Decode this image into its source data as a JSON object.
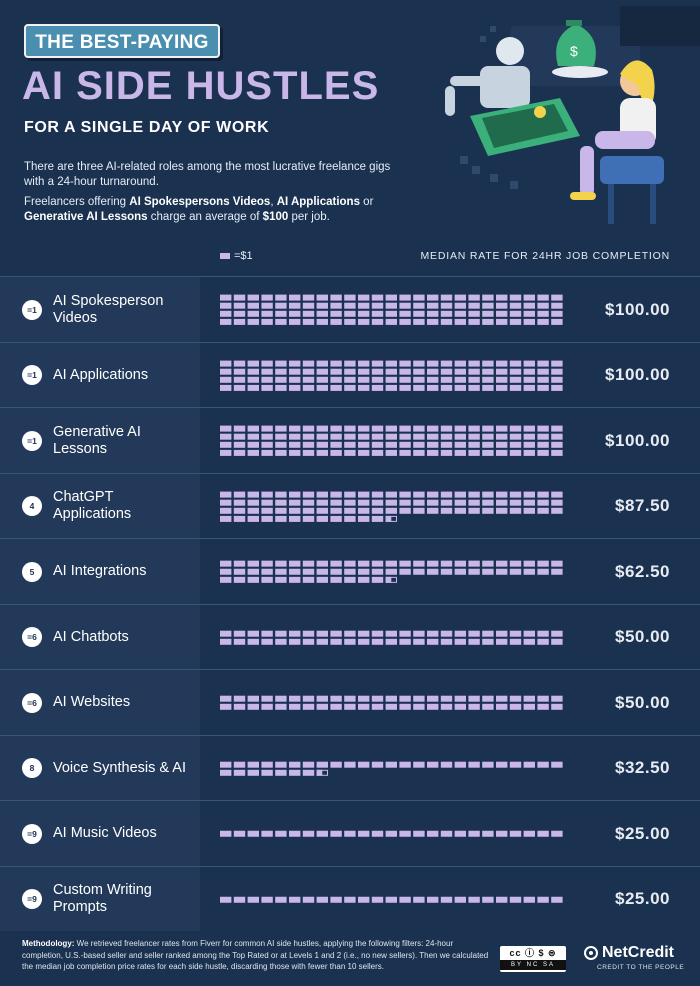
{
  "header": {
    "pill": "THE BEST-PAYING",
    "headline": "AI SIDE HUSTLES",
    "subheadline": "FOR A SINGLE DAY OF WORK",
    "intro_1": "There are three AI-related roles among the most lucrative freelance gigs with a 24-hour turnaround.",
    "intro_2": {
      "a": "Freelancers offering ",
      "b": "AI Spokespersons Videos",
      "c": ", ",
      "d": "AI Applications",
      "e": " or ",
      "f": "Generative AI Lessons",
      "g": " charge an average of ",
      "h": "$100",
      "i": " per job."
    },
    "legend_label": "=$1",
    "column_header": "MEDIAN RATE FOR 24HR JOB COMPLETION"
  },
  "colors": {
    "background": "#1a3150",
    "row_label_bg": "#23395a",
    "unit_fill": "#c9b7ea",
    "accent": "#4a8fb0",
    "divider": "#3a5576"
  },
  "chart_data": {
    "type": "pictograph",
    "unit_value": 1,
    "unit_label": "=$1",
    "value_header": "MEDIAN RATE FOR 24HR JOB COMPLETION",
    "categories": [
      "AI Spokesperson Videos",
      "AI Applications",
      "Generative AI Lessons",
      "ChatGPT Applications",
      "AI Integrations",
      "AI Chatbots",
      "AI Websites",
      "Voice Synthesis & AI",
      "AI Music Videos",
      "Custom Writing Prompts"
    ],
    "ranks": [
      "=1",
      "=1",
      "=1",
      "4",
      "5",
      "=6",
      "=6",
      "8",
      "=9",
      "=9"
    ],
    "values": [
      100.0,
      100.0,
      100.0,
      87.5,
      62.5,
      50.0,
      50.0,
      32.5,
      25.0,
      25.0
    ],
    "value_labels": [
      "$100.00",
      "$100.00",
      "$100.00",
      "$87.50",
      "$62.50",
      "$50.00",
      "$50.00",
      "$32.50",
      "$25.00",
      "$25.00"
    ],
    "units_per_row": 25
  },
  "rows": [
    {
      "rank": "=1",
      "name": "AI Spokesperson Videos",
      "price": "$100.00"
    },
    {
      "rank": "=1",
      "name": "AI Applications",
      "price": "$100.00"
    },
    {
      "rank": "=1",
      "name": "Generative AI Lessons",
      "price": "$100.00"
    },
    {
      "rank": "4",
      "name": "ChatGPT Applications",
      "price": "$87.50"
    },
    {
      "rank": "5",
      "name": "AI Integrations",
      "price": "$62.50"
    },
    {
      "rank": "=6",
      "name": "AI Chatbots",
      "price": "$50.00"
    },
    {
      "rank": "=6",
      "name": "AI Websites",
      "price": "$50.00"
    },
    {
      "rank": "8",
      "name": "Voice Synthesis & AI",
      "price": "$32.50"
    },
    {
      "rank": "=9",
      "name": "AI Music Videos",
      "price": "$25.00"
    },
    {
      "rank": "=9",
      "name": "Custom Writing Prompts",
      "price": "$25.00"
    }
  ],
  "footer": {
    "method_label": "Methodology:",
    "method_text": " We retrieved freelancer rates from Fiverr for common AI side hustles, applying the following filters: 24-hour completion, U.S.-based seller and seller ranked among the Top Rated or at Levels 1 and 2 (i.e., no new sellers). Then we calculated the median job completion price rates for each side hustle, discarding those with fewer than 10 sellers.",
    "license_top": "cc ⓘ $ ⊜",
    "license_bottom": "BY NC SA",
    "brand": "NetCredit",
    "tagline": "CREDIT TO THE PEOPLE"
  }
}
